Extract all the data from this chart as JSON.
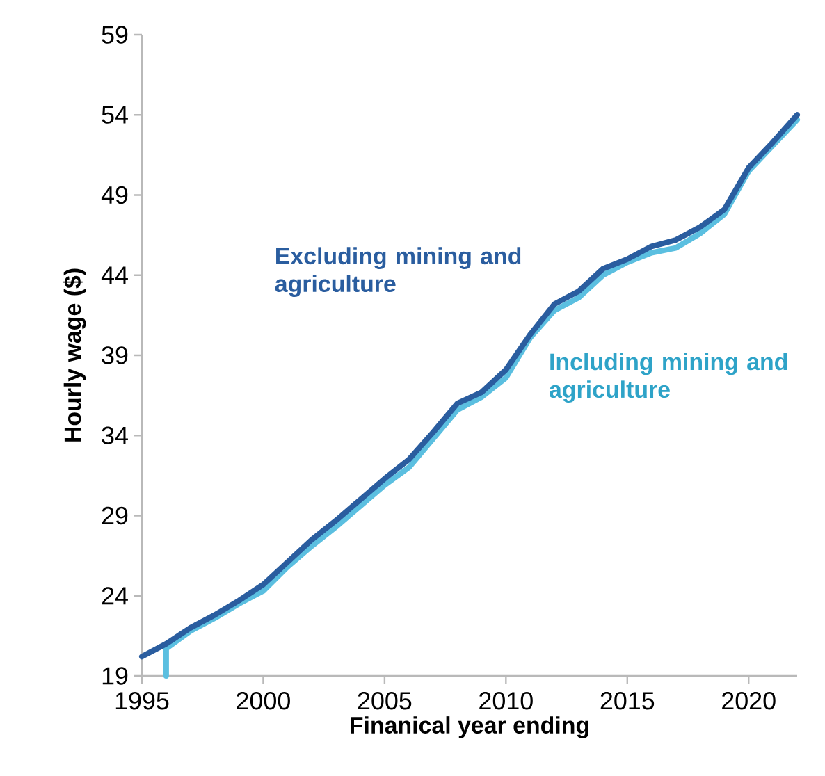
{
  "chart_data": {
    "type": "line",
    "xlabel": "Finanical year ending",
    "ylabel": "Hourly wage ($)",
    "xlim": [
      1995,
      2022
    ],
    "xticks": [
      1995,
      2000,
      2005,
      2010,
      2015,
      2020
    ],
    "ylim": [
      19,
      59
    ],
    "yticks": [
      19,
      24,
      29,
      34,
      39,
      44,
      49,
      54,
      59
    ],
    "grid": false,
    "legend": false,
    "line_style": "solid",
    "marker": "none",
    "series": [
      {
        "name": "Including mining and agriculture",
        "color": "#5bbfe0",
        "x": [
          1996,
          1996,
          1997,
          1998,
          1999,
          2000,
          2001,
          2002,
          2003,
          2004,
          2005,
          2006,
          2007,
          2008,
          2009,
          2010,
          2011,
          2012,
          2013,
          2014,
          2015,
          2016,
          2017,
          2018,
          2019,
          2020,
          2021,
          2022
        ],
        "values": [
          19,
          20.7,
          21.8,
          22.6,
          23.5,
          24.3,
          25.8,
          27.1,
          28.3,
          29.6,
          30.9,
          32.0,
          33.8,
          35.6,
          36.4,
          37.6,
          40.1,
          41.8,
          42.6,
          44.0,
          44.8,
          45.4,
          45.7,
          46.6,
          47.8,
          50.5,
          52.1,
          53.7
        ]
      },
      {
        "name": "Excluding mining and agriculture",
        "color": "#2a5d9f",
        "x": [
          1995,
          1996,
          1997,
          1998,
          1999,
          2000,
          2001,
          2002,
          2003,
          2004,
          2005,
          2006,
          2007,
          2008,
          2009,
          2010,
          2011,
          2012,
          2013,
          2014,
          2015,
          2016,
          2017,
          2018,
          2019,
          2020,
          2021,
          2022
        ],
        "values": [
          20.2,
          21.0,
          22.0,
          22.8,
          23.7,
          24.7,
          26.1,
          27.5,
          28.7,
          30.0,
          31.3,
          32.5,
          34.2,
          36.0,
          36.7,
          38.1,
          40.3,
          42.2,
          43.0,
          44.4,
          45.0,
          45.8,
          46.2,
          47.0,
          48.1,
          50.7,
          52.3,
          54.0
        ]
      }
    ]
  }
}
